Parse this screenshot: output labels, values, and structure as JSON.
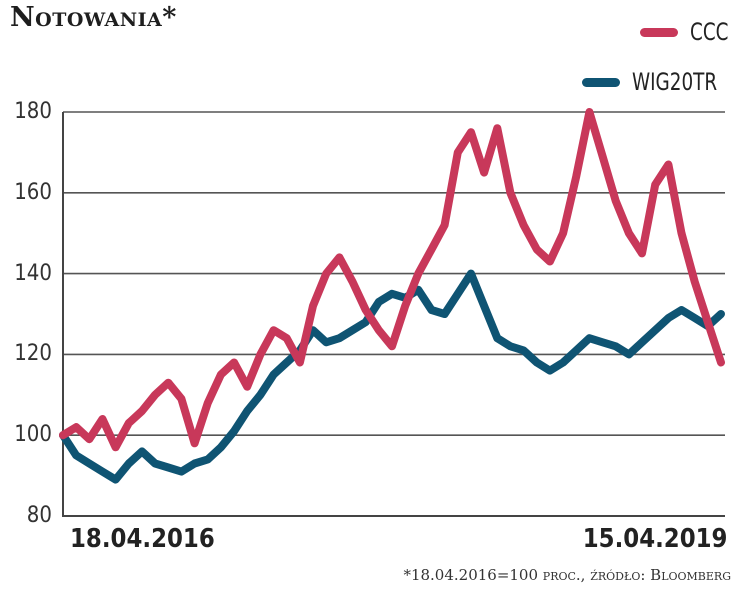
{
  "title": "Notowania*",
  "legend": [
    {
      "label": "CCC",
      "color": "#c8385a"
    },
    {
      "label": "WIG20TR",
      "color": "#0f5473"
    }
  ],
  "y_axis": {
    "ticks": [
      "180",
      "160",
      "140",
      "120",
      "100",
      "80"
    ]
  },
  "x_axis": {
    "start": "18.04.2016",
    "end": "15.04.2019"
  },
  "footnote": {
    "main": "*18.04.2016=100 ",
    "sc": "proc., źródło: Bloomberg"
  },
  "chart_data": {
    "type": "line",
    "title": "Notowania*",
    "xlabel": "",
    "ylabel": "",
    "ylim": [
      80,
      185
    ],
    "x_range": [
      "18.04.2016",
      "15.04.2019"
    ],
    "grid": "horizontal",
    "legend_position": "top-right",
    "note": "*18.04.2016=100 proc., źródło: Bloomberg",
    "x": [
      0,
      2,
      4,
      6,
      8,
      10,
      12,
      14,
      16,
      18,
      20,
      22,
      24,
      26,
      28,
      30,
      32,
      34,
      36,
      38,
      40,
      42,
      44,
      46,
      48,
      50,
      52,
      54,
      56,
      58,
      60,
      62,
      64,
      66,
      68,
      70,
      72,
      74,
      76,
      78,
      80,
      82,
      84,
      86,
      88,
      90,
      92,
      94,
      96,
      98,
      100
    ],
    "series": [
      {
        "name": "CCC",
        "color": "#c8385a",
        "values": [
          100,
          102,
          99,
          104,
          97,
          103,
          106,
          110,
          113,
          109,
          98,
          108,
          115,
          118,
          112,
          120,
          126,
          124,
          118,
          132,
          140,
          144,
          138,
          131,
          126,
          122,
          132,
          140,
          146,
          152,
          170,
          175,
          165,
          176,
          160,
          152,
          146,
          143,
          150,
          164,
          180,
          169,
          158,
          150,
          145,
          162,
          167,
          150,
          138,
          128,
          118
        ]
      },
      {
        "name": "WIG20TR",
        "color": "#0f5473",
        "values": [
          100,
          95,
          93,
          91,
          89,
          93,
          96,
          93,
          92,
          91,
          93,
          94,
          97,
          101,
          106,
          110,
          115,
          118,
          121,
          126,
          123,
          124,
          126,
          128,
          133,
          135,
          134,
          136,
          131,
          130,
          135,
          140,
          132,
          124,
          122,
          121,
          118,
          116,
          118,
          121,
          124,
          123,
          122,
          120,
          123,
          126,
          129,
          131,
          129,
          127,
          130
        ]
      }
    ]
  }
}
